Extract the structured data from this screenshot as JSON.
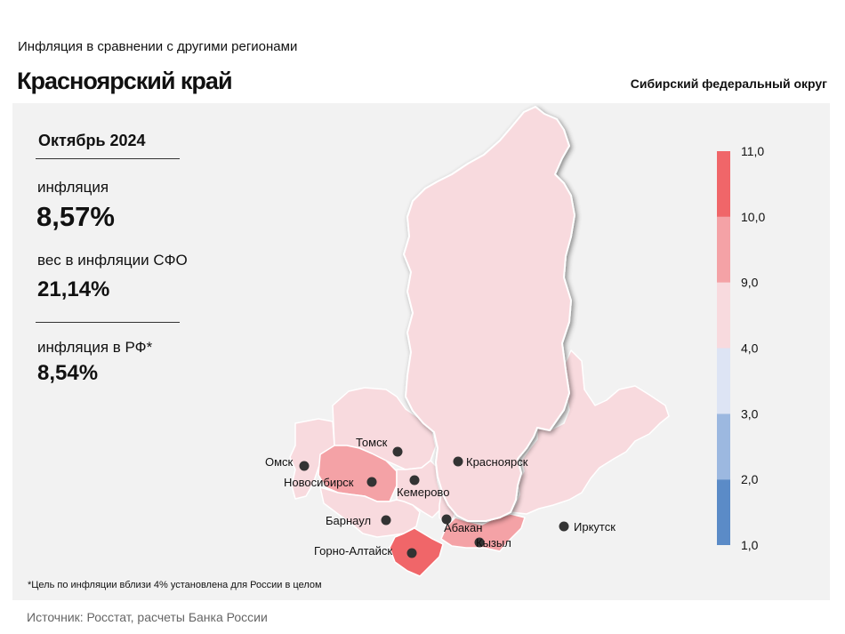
{
  "header": {
    "supertitle": "Инфляция  в сравнении  с другими  регионами",
    "title": "Красноярский край",
    "district": "Сибирский федеральный округ"
  },
  "stats": {
    "period": "Октябрь 2024",
    "inflation_label": "инфляция",
    "inflation_value": "8,57%",
    "weight_label": "вес в инфляции  СФО",
    "weight_value": "21,14%",
    "rf_label": "инфляция  в РФ*",
    "rf_value": "8,54%"
  },
  "legend": {
    "ticks": [
      "11,0",
      "10,0",
      "9,0",
      "4,0",
      "3,0",
      "2,0",
      "1,0"
    ],
    "bins": [
      {
        "from": 1.0,
        "to": 2.0,
        "color": "#5b8bc7"
      },
      {
        "from": 2.0,
        "to": 3.0,
        "color": "#9cb8e0"
      },
      {
        "from": 3.0,
        "to": 4.0,
        "color": "#dde4f4"
      },
      {
        "from": 4.0,
        "to": 9.0,
        "color": "#f8dade"
      },
      {
        "from": 9.0,
        "to": 10.0,
        "color": "#f4a2a6"
      },
      {
        "from": 10.0,
        "to": 11.0,
        "color": "#f06669"
      }
    ]
  },
  "map": {
    "regions": [
      {
        "id": "krasnoyarsk-krai",
        "fill": "#f8dade"
      },
      {
        "id": "irkutsk-oblast",
        "fill": "#f8dade"
      },
      {
        "id": "omsk-oblast",
        "fill": "#f8dade"
      },
      {
        "id": "tomsk-oblast",
        "fill": "#f8dade"
      },
      {
        "id": "novosibirsk-oblast",
        "fill": "#f4a2a6"
      },
      {
        "id": "kemerovo-oblast",
        "fill": "#f8dade"
      },
      {
        "id": "altai-krai",
        "fill": "#f8dade"
      },
      {
        "id": "khakassia",
        "fill": "#f8dade"
      },
      {
        "id": "altai-republic",
        "fill": "#f06669"
      },
      {
        "id": "tyva",
        "fill": "#f4a2a6"
      }
    ],
    "cities": [
      {
        "name": "Томск"
      },
      {
        "name": "Омск"
      },
      {
        "name": "Новосибирск"
      },
      {
        "name": "Кемерово"
      },
      {
        "name": "Красноярск"
      },
      {
        "name": "Барнаул"
      },
      {
        "name": "Абакан"
      },
      {
        "name": "Кызыл"
      },
      {
        "name": "Горно-Алтайск"
      },
      {
        "name": "Иркутск"
      }
    ]
  },
  "footnote": "*Цель по инфляции вблизи 4% установлена для России в целом",
  "source": "Источник: Росстат, расчеты Банка России"
}
